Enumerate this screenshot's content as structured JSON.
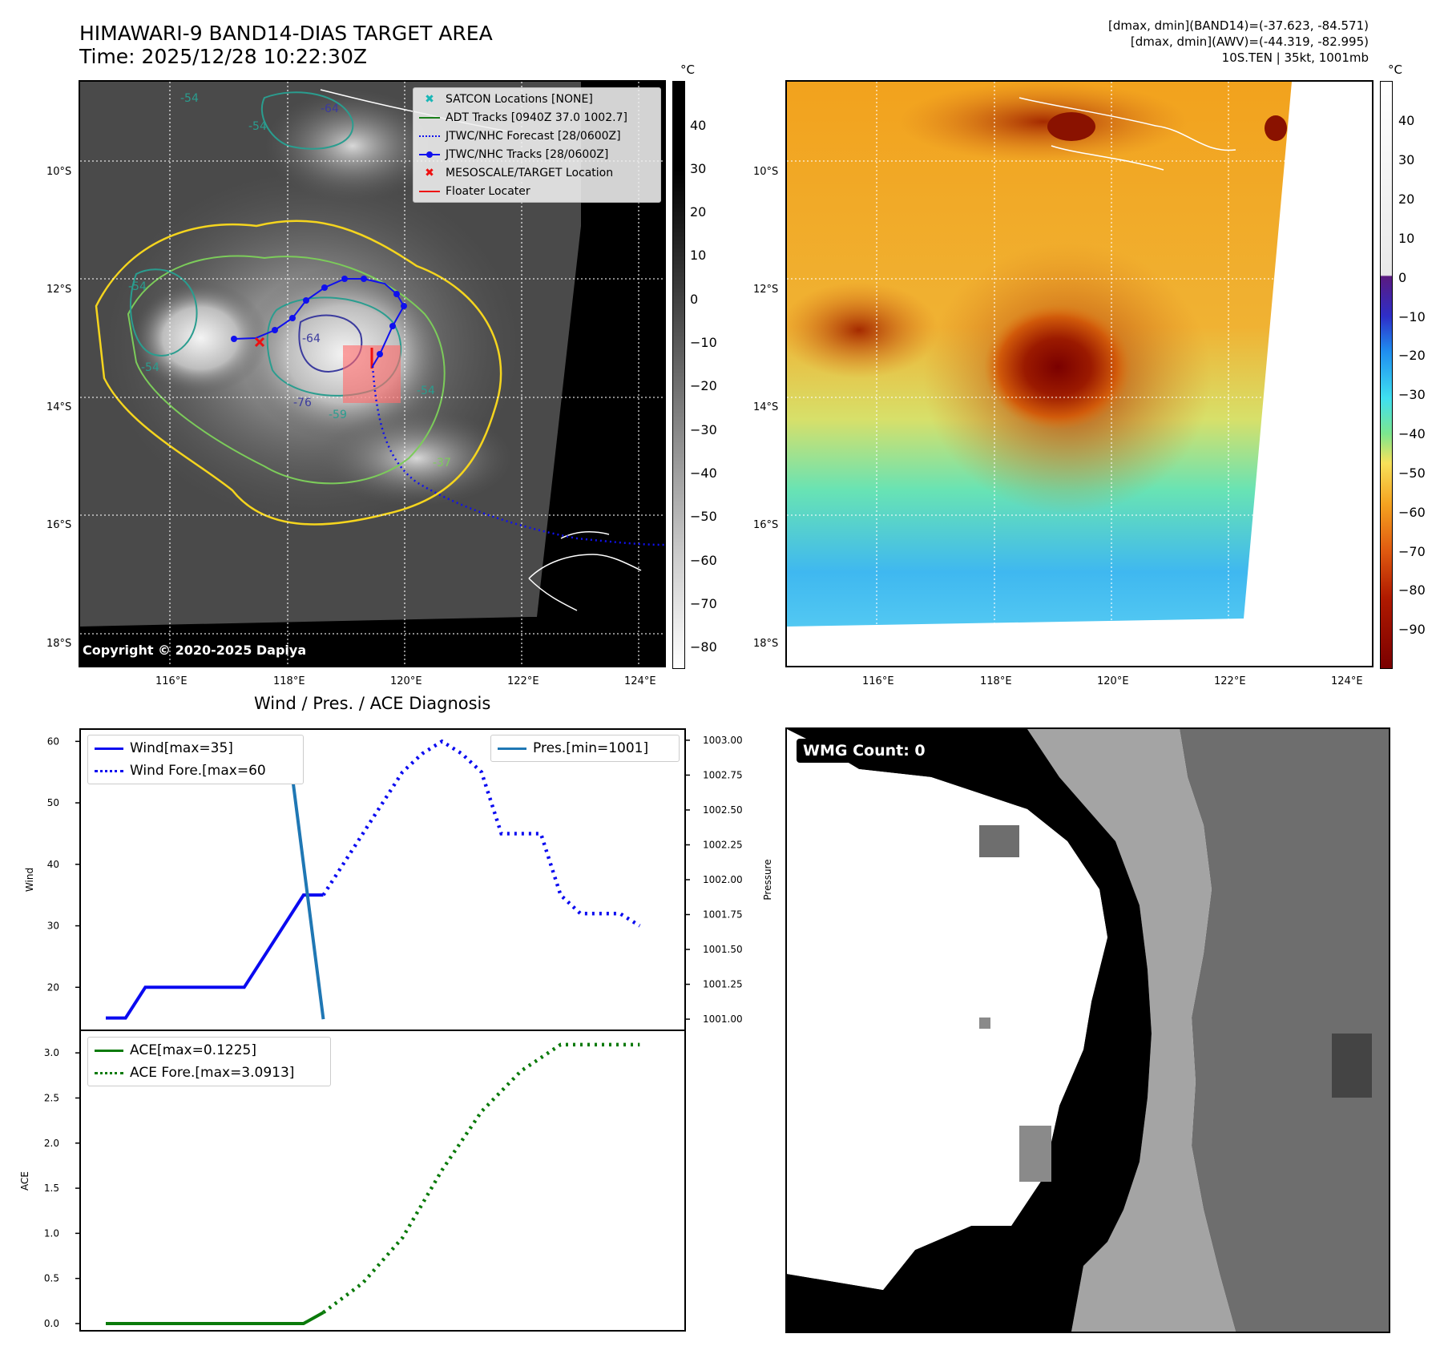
{
  "header": {
    "title_line1": "HIMAWARI-9 BAND14-DIAS TARGET AREA",
    "title_line2": "Time: 2025/12/28 10:22:30Z",
    "meta_line1": "[dmax, dmin](BAND14)=(-37.623, -84.571)",
    "meta_line2": "[dmax, dmin](AWV)=(-44.319, -82.995)",
    "meta_line3": "10S.TEN | 35kt, 1001mb"
  },
  "map": {
    "lat_ticks": [
      "10°S",
      "12°S",
      "14°S",
      "16°S",
      "18°S"
    ],
    "lon_ticks": [
      "116°E",
      "118°E",
      "120°E",
      "122°E",
      "124°E"
    ],
    "copyright": "Copyright © 2020-2025 Dapiya",
    "contour_labels": [
      "-64",
      "-54",
      "-54",
      "-54",
      "-54",
      "-64",
      "-76",
      "-59",
      "-54",
      "-37"
    ],
    "legend": [
      {
        "label": "SATCON Locations [NONE]",
        "color": "#19b6b6",
        "marker": "x"
      },
      {
        "label": "ADT Tracks [0940Z 37.0 1002.7]",
        "color": "#1a7f1a",
        "marker": "solid"
      },
      {
        "label": "JTWC/NHC Forecast [28/0600Z]",
        "color": "#1010ee",
        "marker": "dotted"
      },
      {
        "label": "JTWC/NHC Tracks [28/0600Z]",
        "color": "#1010ee",
        "marker": "line-dot"
      },
      {
        "label": "MESOSCALE/TARGET Location",
        "color": "#ee1010",
        "marker": "x"
      },
      {
        "label": "Floater Locater",
        "color": "#ee1010",
        "marker": "solid"
      }
    ],
    "colorbar_gray": {
      "unit": "°C",
      "ticks": [
        "40",
        "30",
        "20",
        "10",
        "0",
        "−10",
        "−20",
        "−30",
        "−40",
        "−50",
        "−60",
        "−70",
        "−80"
      ]
    },
    "colorbar_color": {
      "unit": "°C",
      "ticks": [
        "40",
        "30",
        "20",
        "10",
        "0",
        "−10",
        "−20",
        "−30",
        "−40",
        "−50",
        "−60",
        "−70",
        "−80",
        "−90"
      ]
    }
  },
  "wmg": {
    "label": "WMG Count: 0"
  },
  "chart_data": [
    {
      "type": "line",
      "title": "Wind / Pres. / ACE Diagnosis",
      "ylabel": "Wind",
      "ylabel_right": "Pressure",
      "ylim": [
        13,
        62
      ],
      "ylim_right": [
        1000.92,
        1003.08
      ],
      "yticks": [
        20,
        30,
        40,
        50,
        60
      ],
      "yticks_right": [
        "1001.00",
        "1001.25",
        "1001.50",
        "1001.75",
        "1002.00",
        "1002.25",
        "1002.50",
        "1002.75",
        "1003.00"
      ],
      "x_index_range": [
        0,
        28
      ],
      "series": [
        {
          "name": "Wind[max=35]",
          "style": "solid",
          "color": "#0a0af0",
          "x": [
            0,
            1,
            2,
            3,
            4,
            5,
            6,
            7,
            8,
            9,
            10,
            11
          ],
          "values": [
            15,
            15,
            20,
            20,
            20,
            20,
            20,
            20,
            25,
            30,
            35,
            35
          ]
        },
        {
          "name": "Wind Fore.[max=60",
          "style": "dotted",
          "color": "#0a0af0",
          "x": [
            11,
            12,
            13,
            14,
            15,
            16,
            17,
            18,
            19,
            20,
            21,
            22,
            23,
            24,
            25,
            26,
            27
          ],
          "values": [
            35,
            40,
            45,
            50,
            55,
            58,
            60,
            58,
            55,
            45,
            45,
            45,
            35,
            32,
            32,
            32,
            30
          ]
        },
        {
          "name": "Pres.[min=1001]",
          "style": "solid",
          "color": "#1f77b4",
          "axis": "right",
          "x": [
            0,
            9.2,
            11
          ],
          "values": [
            1003.0,
            1003.0,
            1001.0
          ]
        }
      ]
    },
    {
      "type": "line",
      "ylabel": "ACE",
      "ylim": [
        -0.08,
        3.25
      ],
      "yticks": [
        "0.0",
        "0.5",
        "1.0",
        "1.5",
        "2.0",
        "2.5",
        "3.0"
      ],
      "x_index_range": [
        0,
        28
      ],
      "series": [
        {
          "name": "ACE[max=0.1225]",
          "style": "solid",
          "color": "#0a7a0a",
          "x": [
            0,
            10,
            11
          ],
          "values": [
            0.0,
            0.0,
            0.1225
          ]
        },
        {
          "name": "ACE Fore.[max=3.0913]",
          "style": "dotted",
          "color": "#0a7a0a",
          "x": [
            11,
            13,
            15,
            17,
            19,
            21,
            23,
            25,
            27
          ],
          "values": [
            0.1225,
            0.45,
            0.95,
            1.7,
            2.35,
            2.8,
            3.0913,
            3.0913,
            3.0913
          ]
        }
      ]
    }
  ]
}
